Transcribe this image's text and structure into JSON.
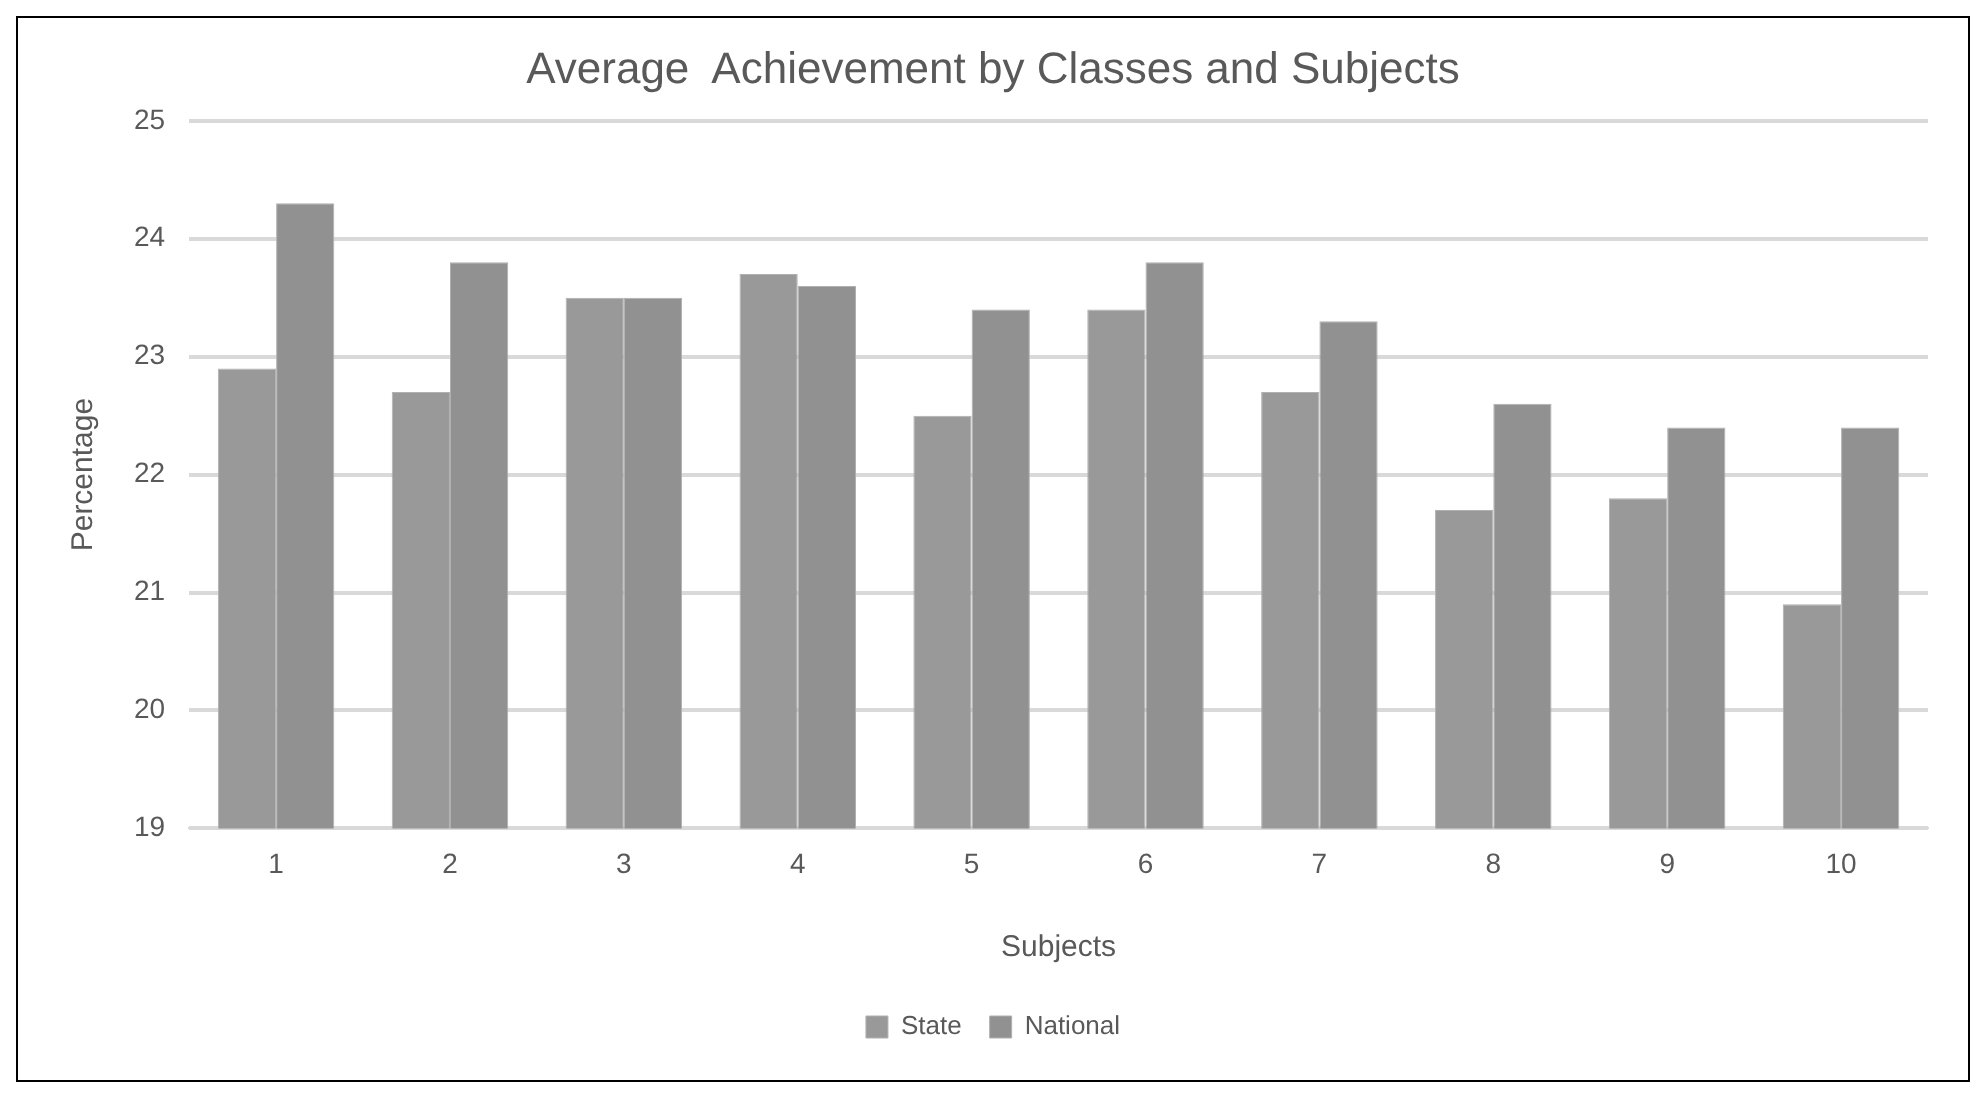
{
  "chart_data": {
    "type": "bar",
    "title": "Average  Achievement by Classes and Subjects",
    "xlabel": "Subjects",
    "ylabel": "Percentage",
    "categories": [
      "1",
      "2",
      "3",
      "4",
      "5",
      "6",
      "7",
      "8",
      "9",
      "10"
    ],
    "series": [
      {
        "name": "State",
        "color": "#999999",
        "values": [
          22.9,
          22.7,
          23.5,
          23.7,
          22.5,
          23.4,
          22.7,
          21.7,
          21.8,
          20.9
        ]
      },
      {
        "name": "National",
        "color": "#919191",
        "values": [
          24.3,
          23.8,
          23.5,
          23.6,
          23.4,
          23.8,
          23.3,
          22.6,
          22.4,
          22.4
        ]
      }
    ],
    "ylim": [
      19,
      25
    ],
    "yticks": [
      19,
      20,
      21,
      22,
      23,
      24,
      25
    ],
    "grid": "y",
    "legend": "bottom"
  }
}
